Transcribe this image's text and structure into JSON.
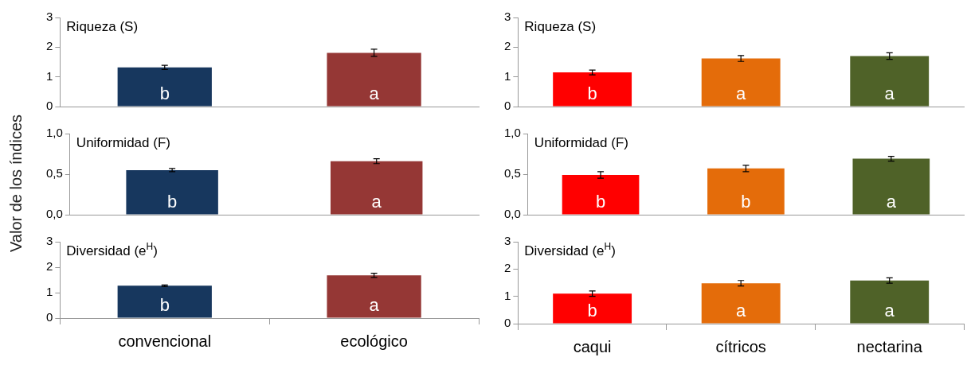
{
  "chart_data": [
    {
      "type": "bar",
      "title": "Riqueza (S)",
      "categories": [
        null,
        null
      ],
      "values": [
        1.32,
        1.81
      ],
      "errors": [
        0.07,
        0.12
      ],
      "colors": [
        "#17375e",
        "#953735"
      ],
      "ylim": [
        0,
        3
      ],
      "yticks": [
        0,
        1,
        2,
        3
      ],
      "tick_labels": "y",
      "grid": false,
      "legend": false,
      "annotations": [
        "b",
        "a"
      ]
    },
    {
      "type": "bar",
      "title": "Uniformidad (F)",
      "ylabel": "Valor de los índices",
      "categories": [
        null,
        null
      ],
      "values": [
        0.55,
        0.66
      ],
      "errors": [
        0.02,
        0.03
      ],
      "colors": [
        "#17375e",
        "#953735"
      ],
      "ylim": [
        0,
        1
      ],
      "yticks": [
        {
          "value": 0,
          "label": "0,0"
        },
        {
          "value": 0.5,
          "label": "0,5"
        },
        {
          "value": 1,
          "label": "1,0"
        }
      ],
      "tick_labels": "y",
      "grid": false,
      "legend": false,
      "annotations": [
        "b",
        "a"
      ]
    },
    {
      "type": "bar",
      "title": "Diversidad (e$^{H}$)",
      "categories": [
        "convencional",
        "ecológico"
      ],
      "values": [
        1.27,
        1.68
      ],
      "errors": [
        0.03,
        0.08
      ],
      "colors": [
        "#17375e",
        "#953735"
      ],
      "ylim": [
        0,
        3
      ],
      "yticks": [
        0,
        1,
        2,
        3
      ],
      "grid": false,
      "legend": false,
      "annotations": [
        "b",
        "a"
      ]
    },
    {
      "type": "bar",
      "title": "Riqueza (S)",
      "categories": [
        null,
        null,
        null
      ],
      "values": [
        1.15,
        1.62,
        1.7
      ],
      "errors": [
        0.08,
        0.1,
        0.11
      ],
      "colors": [
        "#ff0000",
        "#e46c0a",
        "#4f6228"
      ],
      "ylim": [
        0,
        3
      ],
      "yticks": [
        0,
        1,
        2,
        3
      ],
      "tick_labels": "y",
      "grid": false,
      "legend": false,
      "annotations": [
        "b",
        "a",
        "a"
      ]
    },
    {
      "type": "bar",
      "title": "Uniformidad (F)",
      "categories": [
        null,
        null,
        null
      ],
      "values": [
        0.49,
        0.57,
        0.69
      ],
      "errors": [
        0.04,
        0.04,
        0.03
      ],
      "colors": [
        "#ff0000",
        "#e46c0a",
        "#4f6228"
      ],
      "ylim": [
        0,
        1
      ],
      "yticks": [
        {
          "value": 0,
          "label": "0,0"
        },
        {
          "value": 0.5,
          "label": "0,5"
        },
        {
          "value": 1,
          "label": "1,0"
        }
      ],
      "tick_labels": "y",
      "grid": false,
      "legend": false,
      "annotations": [
        "b",
        "b",
        "a"
      ]
    },
    {
      "type": "bar",
      "title": "Diversidad (e$^{H}$)",
      "categories": [
        "caqui",
        "cítricos",
        "nectarina"
      ],
      "values": [
        1.1,
        1.48,
        1.58
      ],
      "errors": [
        0.1,
        0.1,
        0.1
      ],
      "colors": [
        "#ff0000",
        "#e46c0a",
        "#4f6228"
      ],
      "ylim": [
        0,
        3
      ],
      "yticks": [
        0,
        1,
        2,
        3
      ],
      "grid": false,
      "legend": false,
      "annotations": [
        "b",
        "a",
        "a"
      ]
    }
  ]
}
